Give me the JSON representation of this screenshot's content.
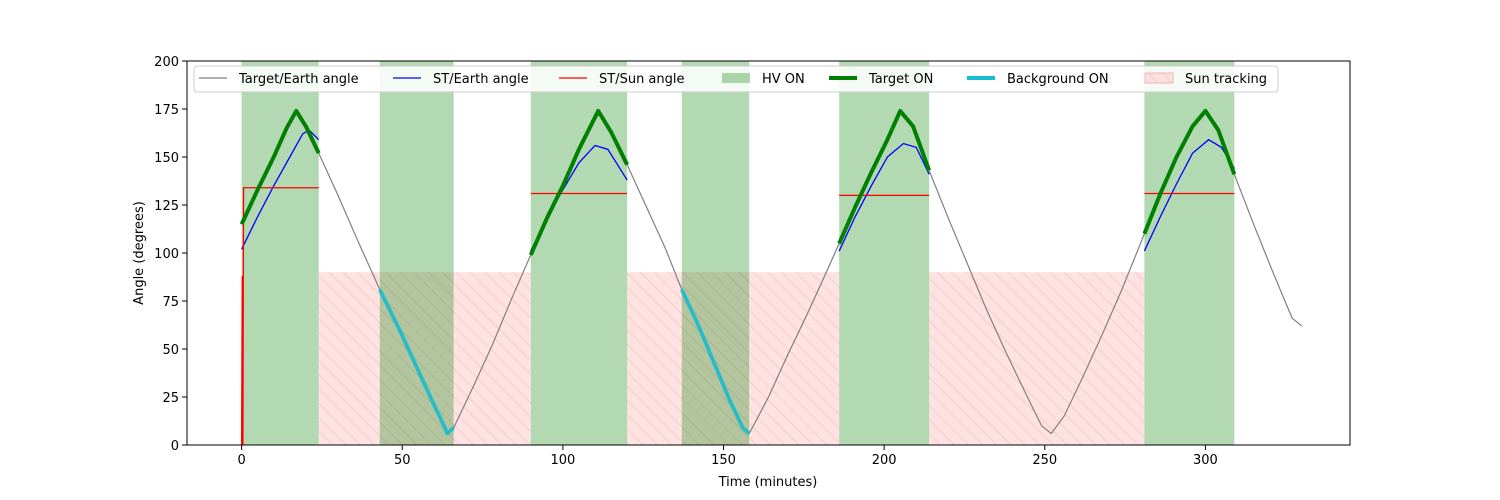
{
  "chart_data": {
    "type": "line",
    "xlabel": "Time (minutes)",
    "ylabel": "Angle (degrees)",
    "xlim": [
      -17,
      345
    ],
    "ylim": [
      0,
      200
    ],
    "xticks": [
      0,
      50,
      100,
      150,
      200,
      250,
      300
    ],
    "yticks": [
      0,
      25,
      50,
      75,
      100,
      125,
      150,
      175,
      200
    ],
    "legend_position": "top",
    "colors": {
      "target_earth": "#808080",
      "st_earth": "#0000ff",
      "st_sun": "#ff0000",
      "hv_on": "#008000",
      "target_on": "#008000",
      "background_on": "#17becf",
      "sun_tracking": "#ff6b6b"
    },
    "hv_on_intervals": [
      [
        0,
        24
      ],
      [
        43,
        66
      ],
      [
        90,
        120
      ],
      [
        137,
        158
      ],
      [
        186,
        214
      ],
      [
        281,
        309
      ]
    ],
    "sun_tracking_intervals": [
      [
        24,
        90
      ],
      [
        120,
        186
      ],
      [
        214,
        281
      ]
    ],
    "sun_tracking_level": 90,
    "target_on_intervals": [
      [
        0,
        24
      ],
      [
        90,
        120
      ],
      [
        186,
        214
      ],
      [
        281,
        309
      ]
    ],
    "background_on_intervals": [
      [
        43,
        66
      ],
      [
        137,
        158
      ]
    ],
    "series": [
      {
        "name": "Target/Earth angle",
        "points": [
          [
            0,
            115
          ],
          [
            5,
            133
          ],
          [
            10,
            150
          ],
          [
            14,
            165
          ],
          [
            17,
            174
          ],
          [
            20,
            166
          ],
          [
            24,
            152
          ],
          [
            30,
            130
          ],
          [
            36,
            107
          ],
          [
            43,
            81
          ],
          [
            50,
            57
          ],
          [
            56,
            35
          ],
          [
            61,
            17
          ],
          [
            63,
            10
          ],
          [
            64,
            6
          ],
          [
            66,
            9
          ],
          [
            72,
            30
          ],
          [
            78,
            52
          ],
          [
            84,
            76
          ],
          [
            90,
            99
          ],
          [
            95,
            118
          ],
          [
            100,
            135
          ],
          [
            105,
            154
          ],
          [
            111,
            174
          ],
          [
            115,
            163
          ],
          [
            120,
            146
          ],
          [
            126,
            124
          ],
          [
            132,
            102
          ],
          [
            137,
            81
          ],
          [
            142,
            63
          ],
          [
            147,
            43
          ],
          [
            152,
            23
          ],
          [
            156,
            9
          ],
          [
            158,
            6
          ],
          [
            164,
            25
          ],
          [
            170,
            47
          ],
          [
            176,
            68
          ],
          [
            182,
            90
          ],
          [
            186,
            105
          ],
          [
            191,
            124
          ],
          [
            196,
            142
          ],
          [
            201,
            159
          ],
          [
            205,
            174
          ],
          [
            209,
            166
          ],
          [
            214,
            143
          ],
          [
            220,
            118
          ],
          [
            226,
            94
          ],
          [
            232,
            70
          ],
          [
            238,
            48
          ],
          [
            244,
            27
          ],
          [
            249,
            10
          ],
          [
            252,
            6
          ],
          [
            256,
            15
          ],
          [
            262,
            36
          ],
          [
            268,
            58
          ],
          [
            274,
            81
          ],
          [
            281,
            110
          ],
          [
            286,
            131
          ],
          [
            291,
            150
          ],
          [
            296,
            166
          ],
          [
            300,
            174
          ],
          [
            304,
            164
          ],
          [
            309,
            141
          ],
          [
            315,
            115
          ],
          [
            321,
            90
          ],
          [
            327,
            66
          ],
          [
            330,
            62
          ]
        ]
      },
      {
        "name": "ST/Earth angle",
        "segments": [
          [
            [
              0,
              102
            ],
            [
              5,
              119
            ],
            [
              10,
              135
            ],
            [
              15,
              150
            ],
            [
              19,
              162
            ],
            [
              21,
              164
            ],
            [
              24,
              159
            ]
          ],
          [
            [
              90,
              101
            ],
            [
              95,
              118
            ],
            [
              100,
              133
            ],
            [
              105,
              147
            ],
            [
              110,
              156
            ],
            [
              114,
              154
            ],
            [
              120,
              138
            ]
          ],
          [
            [
              186,
              101
            ],
            [
              191,
              119
            ],
            [
              196,
              135
            ],
            [
              201,
              150
            ],
            [
              206,
              157
            ],
            [
              210,
              155
            ],
            [
              214,
              141
            ]
          ],
          [
            [
              281,
              101
            ],
            [
              286,
              119
            ],
            [
              291,
              136
            ],
            [
              296,
              152
            ],
            [
              301,
              159
            ],
            [
              305,
              155
            ],
            [
              309,
              144
            ]
          ]
        ]
      },
      {
        "name": "ST/Sun angle",
        "segments": [
          [
            [
              0,
              0
            ],
            [
              0.2,
              88
            ],
            [
              0.4,
              0
            ],
            [
              0.6,
              134
            ],
            [
              1,
              134
            ],
            [
              24,
              134
            ]
          ],
          [
            [
              90,
              131
            ],
            [
              120,
              131
            ]
          ],
          [
            [
              186,
              130
            ],
            [
              214,
              130
            ]
          ],
          [
            [
              281,
              131
            ],
            [
              309,
              131
            ]
          ]
        ]
      }
    ],
    "legend": [
      {
        "label": "Target/Earth angle",
        "kind": "line",
        "key": "target_earth"
      },
      {
        "label": "ST/Earth angle",
        "kind": "line",
        "key": "st_earth"
      },
      {
        "label": "ST/Sun angle",
        "kind": "line",
        "key": "st_sun"
      },
      {
        "label": "HV ON",
        "kind": "patch",
        "key": "hv_on"
      },
      {
        "label": "Target ON",
        "kind": "thick",
        "key": "target_on"
      },
      {
        "label": "Background ON",
        "kind": "thick",
        "key": "background_on"
      },
      {
        "label": "Sun tracking",
        "kind": "hatch",
        "key": "sun_tracking"
      }
    ]
  }
}
